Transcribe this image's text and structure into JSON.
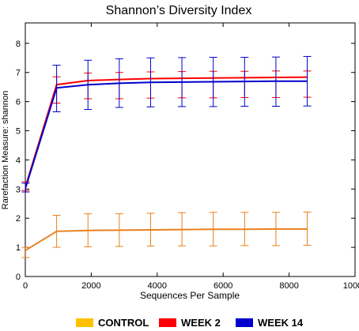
{
  "chart_data": {
    "type": "line",
    "title": "Shannon’s Diversity Index",
    "xlabel": "Sequences Per Sample",
    "ylabel": "Rarefaction Measure: shannon",
    "xlim": [
      0,
      10000
    ],
    "ylim": [
      0,
      8.7
    ],
    "xticks": [
      "0",
      "2000",
      "4000",
      "6000",
      "8000",
      "10000"
    ],
    "yticks": [
      "0",
      "1",
      "2",
      "3",
      "4",
      "5",
      "6",
      "7",
      "8"
    ],
    "x": [
      10,
      950,
      1900,
      2850,
      3800,
      4750,
      5700,
      6650,
      7600,
      8550
    ],
    "grid": false,
    "legend_position": "bottom",
    "series": [
      {
        "name": "WEEK 2",
        "color": "#ff0000",
        "values": [
          3.1,
          6.58,
          6.72,
          6.76,
          6.79,
          6.8,
          6.81,
          6.82,
          6.83,
          6.84
        ],
        "error_low": [
          2.95,
          5.95,
          6.1,
          6.1,
          6.12,
          6.13,
          6.13,
          6.14,
          6.14,
          6.15
        ],
        "error_high": [
          3.25,
          6.85,
          6.98,
          7.0,
          7.02,
          7.03,
          7.04,
          7.04,
          7.05,
          7.05
        ]
      },
      {
        "name": "WEEK 14",
        "color": "#0000cc",
        "values": [
          3.05,
          6.47,
          6.58,
          6.63,
          6.66,
          6.67,
          6.68,
          6.69,
          6.7,
          6.7
        ],
        "error_low": [
          2.9,
          5.65,
          5.73,
          5.8,
          5.82,
          5.83,
          5.83,
          5.84,
          5.84,
          5.85
        ],
        "error_high": [
          3.2,
          7.25,
          7.42,
          7.47,
          7.5,
          7.51,
          7.52,
          7.52,
          7.53,
          7.55
        ]
      },
      {
        "name": "CONTROL",
        "color": "#e8811c",
        "legend_color": "#ffc000",
        "values": [
          0.9,
          1.55,
          1.58,
          1.59,
          1.6,
          1.61,
          1.62,
          1.62,
          1.63,
          1.63
        ],
        "error_low": [
          0.65,
          1.0,
          1.02,
          1.03,
          1.04,
          1.05,
          1.05,
          1.06,
          1.06,
          1.07
        ],
        "error_high": [
          1.0,
          2.1,
          2.15,
          2.15,
          2.17,
          2.19,
          2.2,
          2.2,
          2.2,
          2.21
        ]
      }
    ],
    "legend": [
      {
        "label": "CONTROL",
        "color": "#ffc000"
      },
      {
        "label": "WEEK 2",
        "color": "#ff0000"
      },
      {
        "label": "WEEK 14",
        "color": "#0000cc"
      }
    ]
  }
}
